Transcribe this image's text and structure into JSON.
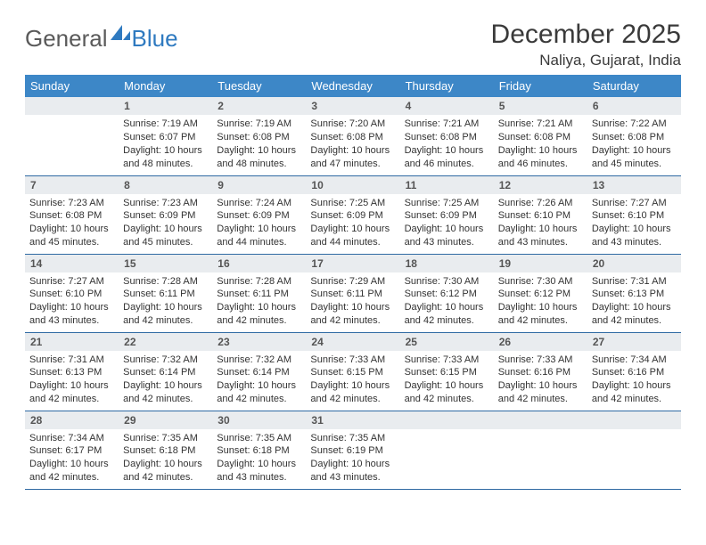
{
  "brand": {
    "line1": "General",
    "line2": "Blue"
  },
  "title": "December 2025",
  "location": "Naliya, Gujarat, India",
  "colors": {
    "header_bg": "#3d87c7",
    "header_fg": "#ffffff",
    "daynum_bg": "#e9ecef",
    "daynum_fg": "#555555",
    "rule": "#2f6aa3",
    "body_text": "#333333",
    "title_text": "#3a3a3a",
    "logo_gray": "#5a5a5a",
    "logo_blue": "#2f7ac0",
    "page_bg": "#ffffff"
  },
  "weekdays": [
    "Sunday",
    "Monday",
    "Tuesday",
    "Wednesday",
    "Thursday",
    "Friday",
    "Saturday"
  ],
  "grid": {
    "rows": 5,
    "cols": 7,
    "first_weekday_offset": 1,
    "days_in_month": 31
  },
  "labels": {
    "sunrise": "Sunrise: ",
    "sunset": "Sunset: ",
    "daylight": "Daylight: "
  },
  "days": {
    "1": {
      "sunrise": "7:19 AM",
      "sunset": "6:07 PM",
      "daylight": "10 hours and 48 minutes."
    },
    "2": {
      "sunrise": "7:19 AM",
      "sunset": "6:08 PM",
      "daylight": "10 hours and 48 minutes."
    },
    "3": {
      "sunrise": "7:20 AM",
      "sunset": "6:08 PM",
      "daylight": "10 hours and 47 minutes."
    },
    "4": {
      "sunrise": "7:21 AM",
      "sunset": "6:08 PM",
      "daylight": "10 hours and 46 minutes."
    },
    "5": {
      "sunrise": "7:21 AM",
      "sunset": "6:08 PM",
      "daylight": "10 hours and 46 minutes."
    },
    "6": {
      "sunrise": "7:22 AM",
      "sunset": "6:08 PM",
      "daylight": "10 hours and 45 minutes."
    },
    "7": {
      "sunrise": "7:23 AM",
      "sunset": "6:08 PM",
      "daylight": "10 hours and 45 minutes."
    },
    "8": {
      "sunrise": "7:23 AM",
      "sunset": "6:09 PM",
      "daylight": "10 hours and 45 minutes."
    },
    "9": {
      "sunrise": "7:24 AM",
      "sunset": "6:09 PM",
      "daylight": "10 hours and 44 minutes."
    },
    "10": {
      "sunrise": "7:25 AM",
      "sunset": "6:09 PM",
      "daylight": "10 hours and 44 minutes."
    },
    "11": {
      "sunrise": "7:25 AM",
      "sunset": "6:09 PM",
      "daylight": "10 hours and 43 minutes."
    },
    "12": {
      "sunrise": "7:26 AM",
      "sunset": "6:10 PM",
      "daylight": "10 hours and 43 minutes."
    },
    "13": {
      "sunrise": "7:27 AM",
      "sunset": "6:10 PM",
      "daylight": "10 hours and 43 minutes."
    },
    "14": {
      "sunrise": "7:27 AM",
      "sunset": "6:10 PM",
      "daylight": "10 hours and 43 minutes."
    },
    "15": {
      "sunrise": "7:28 AM",
      "sunset": "6:11 PM",
      "daylight": "10 hours and 42 minutes."
    },
    "16": {
      "sunrise": "7:28 AM",
      "sunset": "6:11 PM",
      "daylight": "10 hours and 42 minutes."
    },
    "17": {
      "sunrise": "7:29 AM",
      "sunset": "6:11 PM",
      "daylight": "10 hours and 42 minutes."
    },
    "18": {
      "sunrise": "7:30 AM",
      "sunset": "6:12 PM",
      "daylight": "10 hours and 42 minutes."
    },
    "19": {
      "sunrise": "7:30 AM",
      "sunset": "6:12 PM",
      "daylight": "10 hours and 42 minutes."
    },
    "20": {
      "sunrise": "7:31 AM",
      "sunset": "6:13 PM",
      "daylight": "10 hours and 42 minutes."
    },
    "21": {
      "sunrise": "7:31 AM",
      "sunset": "6:13 PM",
      "daylight": "10 hours and 42 minutes."
    },
    "22": {
      "sunrise": "7:32 AM",
      "sunset": "6:14 PM",
      "daylight": "10 hours and 42 minutes."
    },
    "23": {
      "sunrise": "7:32 AM",
      "sunset": "6:14 PM",
      "daylight": "10 hours and 42 minutes."
    },
    "24": {
      "sunrise": "7:33 AM",
      "sunset": "6:15 PM",
      "daylight": "10 hours and 42 minutes."
    },
    "25": {
      "sunrise": "7:33 AM",
      "sunset": "6:15 PM",
      "daylight": "10 hours and 42 minutes."
    },
    "26": {
      "sunrise": "7:33 AM",
      "sunset": "6:16 PM",
      "daylight": "10 hours and 42 minutes."
    },
    "27": {
      "sunrise": "7:34 AM",
      "sunset": "6:16 PM",
      "daylight": "10 hours and 42 minutes."
    },
    "28": {
      "sunrise": "7:34 AM",
      "sunset": "6:17 PM",
      "daylight": "10 hours and 42 minutes."
    },
    "29": {
      "sunrise": "7:35 AM",
      "sunset": "6:18 PM",
      "daylight": "10 hours and 42 minutes."
    },
    "30": {
      "sunrise": "7:35 AM",
      "sunset": "6:18 PM",
      "daylight": "10 hours and 43 minutes."
    },
    "31": {
      "sunrise": "7:35 AM",
      "sunset": "6:19 PM",
      "daylight": "10 hours and 43 minutes."
    }
  }
}
